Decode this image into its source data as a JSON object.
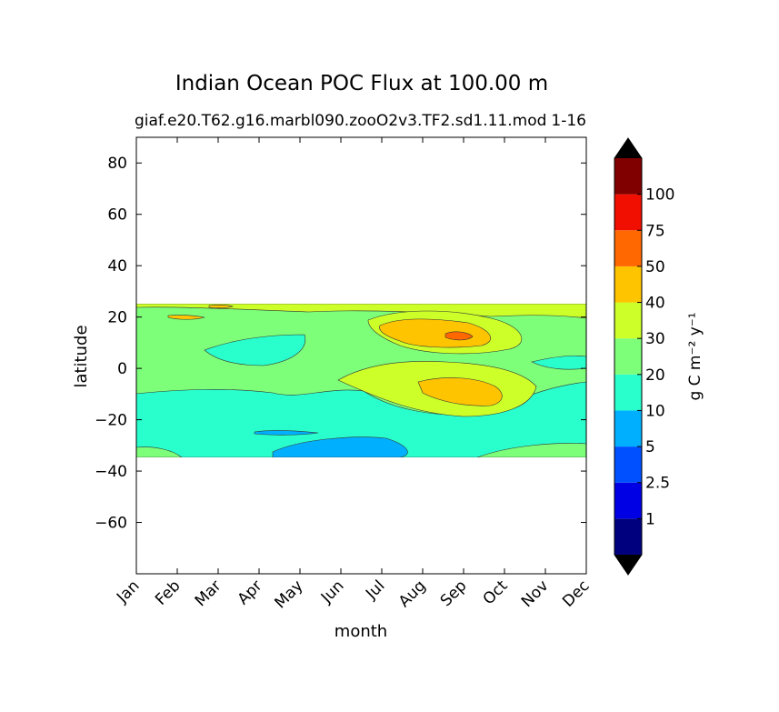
{
  "chart_data": {
    "type": "heatmap",
    "title": "Indian Ocean POC Flux at 100.00 m",
    "subtitle_left": "giaf.e20.T62.g16.marbl090.zooO2v3.TF2.sd1.11.mod",
    "subtitle_right": "1-16",
    "xlabel": "month",
    "ylabel": "latitude",
    "x_categories": [
      "Jan",
      "Feb",
      "Mar",
      "Apr",
      "May",
      "Jun",
      "Jul",
      "Aug",
      "Sep",
      "Oct",
      "Nov",
      "Dec"
    ],
    "y_ticks": [
      80,
      60,
      40,
      20,
      0,
      -20,
      -40,
      -60
    ],
    "ylim": [
      -80,
      90
    ],
    "data_lat_range": [
      -34,
      25
    ],
    "colorbar": {
      "label": "g C m⁻² y⁻¹",
      "tick_labels": [
        "1",
        "2.5",
        "5",
        "10",
        "20",
        "30",
        "40",
        "50",
        "75",
        "100"
      ],
      "colors": [
        "#00007f",
        "#0000e5",
        "#0050ff",
        "#00b0ff",
        "#29ffcd",
        "#7dff79",
        "#cdff29",
        "#ffc400",
        "#ff6800",
        "#f00f00",
        "#800000"
      ],
      "under_color": "#000000",
      "over_color": "#000000"
    },
    "regions": [
      {
        "level": 4,
        "desc": "background 10-20 band"
      },
      {
        "level": 5,
        "desc": "20-30 northern band 0-20N"
      },
      {
        "level": 6,
        "desc": "30-40 Aug-Oct maximum"
      },
      {
        "level": 7,
        "desc": "40-50 Aug-Sep core"
      },
      {
        "level": 8,
        "desc": "50-75 small spots"
      },
      {
        "level": 3,
        "desc": "5-10 patches near -25 to -33"
      }
    ]
  }
}
